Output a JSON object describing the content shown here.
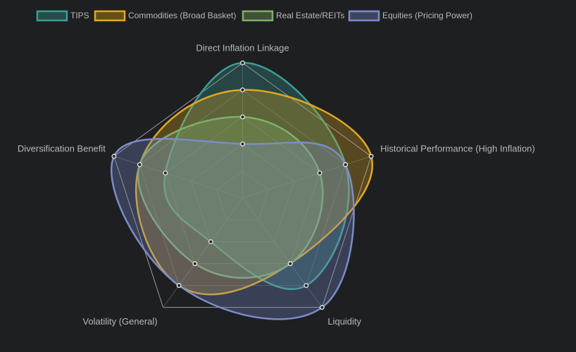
{
  "chart_data": {
    "type": "radar",
    "categories": [
      "Direct Inflation Linkage",
      "Historical Performance (High Inflation)",
      "Liquidity",
      "Volatility (General)",
      "Diversification Benefit"
    ],
    "rlim": [
      0,
      10
    ],
    "rticks": [
      0,
      2,
      4,
      6,
      8,
      10
    ],
    "grid": true,
    "legend": "top",
    "series": [
      {
        "name": "TIPS",
        "color": "#3a9e95",
        "values": [
          10,
          8,
          8,
          4,
          6
        ]
      },
      {
        "name": "Commodities (Broad Basket)",
        "color": "#e0a820",
        "values": [
          8,
          10,
          6,
          8,
          8
        ]
      },
      {
        "name": "Real Estate/REITs",
        "color": "#7fb069",
        "values": [
          6,
          6,
          6,
          6,
          8
        ]
      },
      {
        "name": "Equities (Pricing Power)",
        "color": "#7b8cc9",
        "values": [
          4,
          8,
          10,
          8,
          10
        ]
      }
    ]
  }
}
